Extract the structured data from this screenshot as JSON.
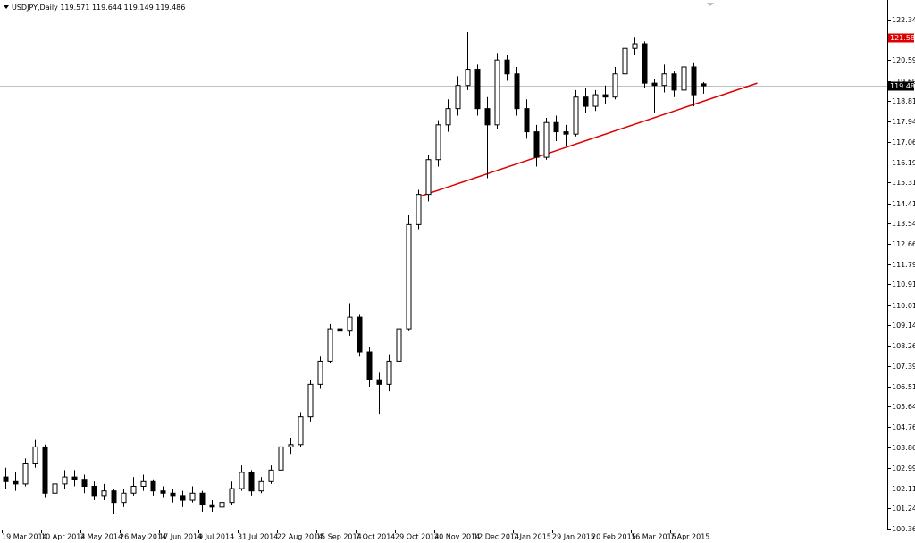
{
  "chart_data": {
    "type": "candlestick",
    "symbol": "USDJPY,Daily",
    "categories": [
      "19 Mar 2014",
      null,
      null,
      null,
      "10 Apr 2014",
      null,
      null,
      null,
      "2 May 2014",
      null,
      null,
      null,
      "26 May 2014",
      null,
      null,
      null,
      "17 Jun 2014",
      null,
      null,
      null,
      "9 Jul 2014",
      null,
      null,
      null,
      "31 Jul 2014",
      null,
      null,
      null,
      "22 Aug 2014",
      null,
      null,
      null,
      "15 Sep 2014",
      null,
      null,
      null,
      "7 Oct 2014",
      null,
      null,
      null,
      "29 Oct 2014",
      null,
      null,
      null,
      "20 Nov 2014",
      null,
      null,
      null,
      "12 Dec 2014",
      null,
      null,
      null,
      "7 Jan 2015",
      null,
      null,
      null,
      "29 Jan 2015",
      null,
      null,
      null,
      "20 Feb 2015",
      null,
      null,
      null,
      "16 Mar 2015",
      null,
      null,
      null,
      "7 Apr 2015",
      null,
      null,
      null
    ],
    "open": [
      102.6,
      102.4,
      102.3,
      103.2,
      103.9,
      101.9,
      102.3,
      102.6,
      102.5,
      102.2,
      101.8,
      102.0,
      101.5,
      101.9,
      102.2,
      102.4,
      102.0,
      101.9,
      101.8,
      101.6,
      101.9,
      101.4,
      101.3,
      101.5,
      102.1,
      102.8,
      102.0,
      102.4,
      102.9,
      103.9,
      104.0,
      105.2,
      106.6,
      107.6,
      109.0,
      108.9,
      109.5,
      108.0,
      106.8,
      106.6,
      107.6,
      109.0,
      113.5,
      114.8,
      116.3,
      117.8,
      118.5,
      119.5,
      120.2,
      118.5,
      117.8,
      120.6,
      120.0,
      118.5,
      117.5,
      116.4,
      117.9,
      117.5,
      117.4,
      119.0,
      118.6,
      119.1,
      119.0,
      120.0,
      121.1,
      121.3,
      119.6,
      119.5,
      120.0,
      119.3,
      120.3,
      119.571
    ],
    "high": [
      103.0,
      102.8,
      103.4,
      104.2,
      104.0,
      102.6,
      102.9,
      102.9,
      102.7,
      102.4,
      102.3,
      102.1,
      102.1,
      102.6,
      102.7,
      102.5,
      102.2,
      102.1,
      102.0,
      102.2,
      102.0,
      101.6,
      101.8,
      102.4,
      103.1,
      102.9,
      102.6,
      103.1,
      104.2,
      104.3,
      105.4,
      106.8,
      107.8,
      109.2,
      109.4,
      110.1,
      109.6,
      108.2,
      107.1,
      107.9,
      109.3,
      113.9,
      115.0,
      116.5,
      118.0,
      118.9,
      119.9,
      121.8,
      120.4,
      119.0,
      120.9,
      120.8,
      120.3,
      118.9,
      117.8,
      118.1,
      118.2,
      117.8,
      119.3,
      119.4,
      119.3,
      119.5,
      120.3,
      122.0,
      121.6,
      121.4,
      119.8,
      120.4,
      120.1,
      120.8,
      120.5,
      119.644
    ],
    "low": [
      102.1,
      102.0,
      102.2,
      103.0,
      101.7,
      101.7,
      102.1,
      102.2,
      101.9,
      101.6,
      101.6,
      101.0,
      101.3,
      101.8,
      102.0,
      101.8,
      101.7,
      101.5,
      101.3,
      101.5,
      101.1,
      101.1,
      101.2,
      101.4,
      102.0,
      101.8,
      101.9,
      102.3,
      102.8,
      103.6,
      103.9,
      105.0,
      106.4,
      107.5,
      108.6,
      108.7,
      107.8,
      106.5,
      105.3,
      106.3,
      107.4,
      108.9,
      113.3,
      114.5,
      116.0,
      117.5,
      118.2,
      119.3,
      118.2,
      115.5,
      117.6,
      119.7,
      118.2,
      117.2,
      116.0,
      116.3,
      117.1,
      116.9,
      117.3,
      118.3,
      118.4,
      118.7,
      118.9,
      119.9,
      120.8,
      119.4,
      118.3,
      119.2,
      119.0,
      119.2,
      118.6,
      119.149
    ],
    "close": [
      102.4,
      102.3,
      103.2,
      103.9,
      101.9,
      102.3,
      102.6,
      102.5,
      102.2,
      101.8,
      102.0,
      101.5,
      101.9,
      102.2,
      102.4,
      102.0,
      101.9,
      101.8,
      101.6,
      101.9,
      101.4,
      101.3,
      101.5,
      102.1,
      102.8,
      102.0,
      102.4,
      102.9,
      103.9,
      104.0,
      105.2,
      106.6,
      107.6,
      109.0,
      108.9,
      109.5,
      108.0,
      106.8,
      106.6,
      107.6,
      109.0,
      113.5,
      114.8,
      116.3,
      117.8,
      118.5,
      119.5,
      120.2,
      118.5,
      117.8,
      120.6,
      120.0,
      118.5,
      117.5,
      116.4,
      117.9,
      117.5,
      117.4,
      119.0,
      118.6,
      119.1,
      119.0,
      120.0,
      121.1,
      121.3,
      119.6,
      119.5,
      120.0,
      119.3,
      120.3,
      119.1,
      119.486
    ],
    "ylim": [
      100.33,
      123.19
    ],
    "yticks": [
      {
        "value": 122.34,
        "label": "122.340"
      },
      {
        "value": 120.59,
        "label": "120.590"
      },
      {
        "value": 119.69,
        "label": "119.690"
      },
      118.815,
      {
        "value": 117.94,
        "label": "117.940"
      },
      117.065,
      {
        "value": 116.19,
        "label": "116.190"
      },
      115.315,
      114.415,
      {
        "value": 113.54,
        "label": "113.540"
      },
      112.665,
      {
        "value": 111.79,
        "label": "111.790"
      },
      110.915,
      110.015,
      {
        "value": 109.14,
        "label": "109.140"
      },
      108.265,
      {
        "value": 107.39,
        "label": "107.390"
      },
      106.515,
      {
        "value": 105.64,
        "label": "105.640"
      },
      104.765,
      103.865,
      {
        "value": 102.99,
        "label": "102.990"
      },
      102.115,
      {
        "value": 101.24,
        "label": "101.240"
      },
      100.365
    ],
    "resistance": {
      "value": 121.58,
      "label": "121.580",
      "color": "#e00000"
    },
    "trendline": {
      "x": [
        42,
        76.5
      ],
      "y": [
        114.69,
        119.6
      ],
      "color": "#e00000"
    },
    "bull_color": "#ffffff",
    "bear_color": "#000000"
  }
}
